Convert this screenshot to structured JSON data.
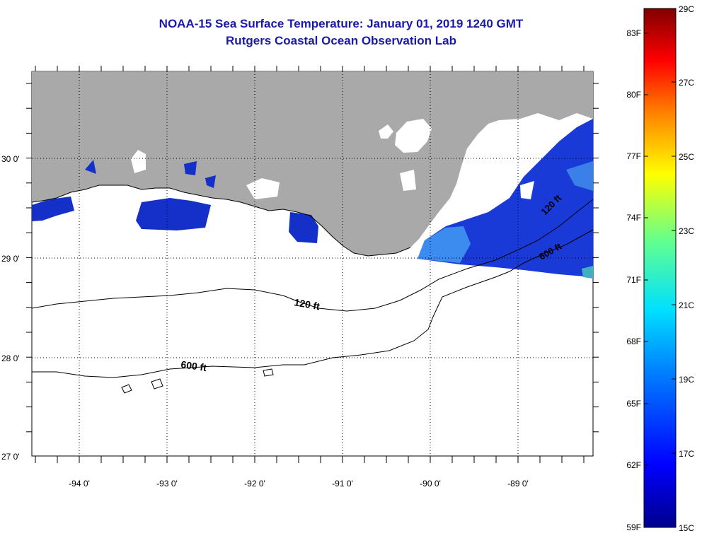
{
  "title": {
    "line1": "NOAA-15 Sea Surface Temperature:  January 01, 2019 1240 GMT",
    "line2": "Rutgers Coastal Ocean Observation Lab"
  },
  "map": {
    "lon_labels": [
      "-94 0'",
      "-93 0'",
      "-92 0'",
      "-91 0'",
      "-90 0'",
      "-89 0'"
    ],
    "lat_labels": [
      "30 0'",
      "29 0'",
      "28 0'",
      "27 0'"
    ],
    "contour_labels": [
      "120 ft",
      "600 ft",
      "120 ft",
      "600 ft"
    ],
    "colors": {
      "land": "#a9a9a9",
      "water_cold": "#1430c8",
      "water_warm": "#3c8cf0",
      "no_data": "#ffffff"
    }
  },
  "colorbar": {
    "fahrenheit": [
      "83F",
      "80F",
      "77F",
      "74F",
      "71F",
      "68F",
      "65F",
      "62F",
      "59F"
    ],
    "celsius": [
      "29C",
      "27C",
      "25C",
      "23C",
      "21C",
      "19C",
      "17C",
      "15C"
    ]
  }
}
